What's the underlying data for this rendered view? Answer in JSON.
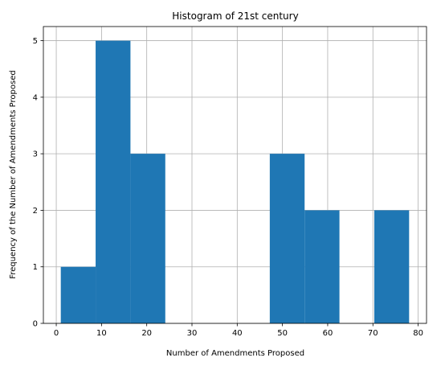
{
  "chart_data": {
    "type": "bar",
    "histogram": true,
    "title": "Histogram of 21st century",
    "xlabel": "Number of Amendments Proposed",
    "ylabel": "Frequency of the Number of Amendments Proposed",
    "bins": [
      {
        "start": 1.0,
        "end": 8.7,
        "count": 1
      },
      {
        "start": 8.7,
        "end": 16.4,
        "count": 5
      },
      {
        "start": 16.4,
        "end": 24.1,
        "count": 3
      },
      {
        "start": 24.1,
        "end": 31.8,
        "count": 0
      },
      {
        "start": 31.8,
        "end": 39.5,
        "count": 0
      },
      {
        "start": 39.5,
        "end": 47.2,
        "count": 0
      },
      {
        "start": 47.2,
        "end": 54.9,
        "count": 3
      },
      {
        "start": 54.9,
        "end": 62.6,
        "count": 2
      },
      {
        "start": 62.6,
        "end": 70.3,
        "count": 0
      },
      {
        "start": 70.3,
        "end": 78.0,
        "count": 2
      }
    ],
    "xlim": [
      -2.85,
      81.85
    ],
    "ylim": [
      0,
      5.25
    ],
    "xticks": [
      0,
      10,
      20,
      30,
      40,
      50,
      60,
      70,
      80
    ],
    "xtick_labels": [
      "0",
      "10",
      "20",
      "30",
      "40",
      "50",
      "60",
      "70",
      "80"
    ],
    "yticks": [
      0,
      1,
      2,
      3,
      4,
      5
    ],
    "ytick_labels": [
      "0",
      "1",
      "2",
      "3",
      "4",
      "5"
    ],
    "grid": true,
    "colors": {
      "bar": "#1f77b4",
      "grid": "#b0b0b0",
      "axis": "#000000"
    }
  }
}
